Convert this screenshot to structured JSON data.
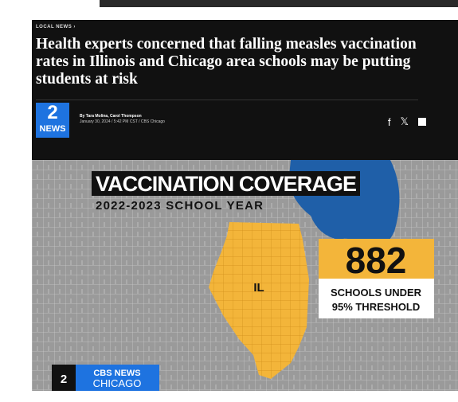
{
  "header": {
    "section": "LOCAL NEWS ›",
    "title": "Health experts concerned that falling measles vaccination rates in Illinois and Chicago area schools may be putting students at risk",
    "logo_number": "2",
    "logo_text": "NEWS",
    "byline": "By Tara Molina, Carol Thompson",
    "dateline": "January 30, 2024 / 5:42 PM CST / CBS Chicago",
    "share": [
      "f",
      "𝕏"
    ]
  },
  "graphic": {
    "title": "VACCINATION COVERAGE",
    "subtitle": "2022-2023 SCHOOL YEAR",
    "state": "IL",
    "count": 882,
    "count_label_1": "SCHOOLS UNDER",
    "count_label_2": "95% THRESHOLD",
    "bug_number": "2",
    "bug_name": "CBS NEWS",
    "bug_city": "CHICAGO"
  }
}
